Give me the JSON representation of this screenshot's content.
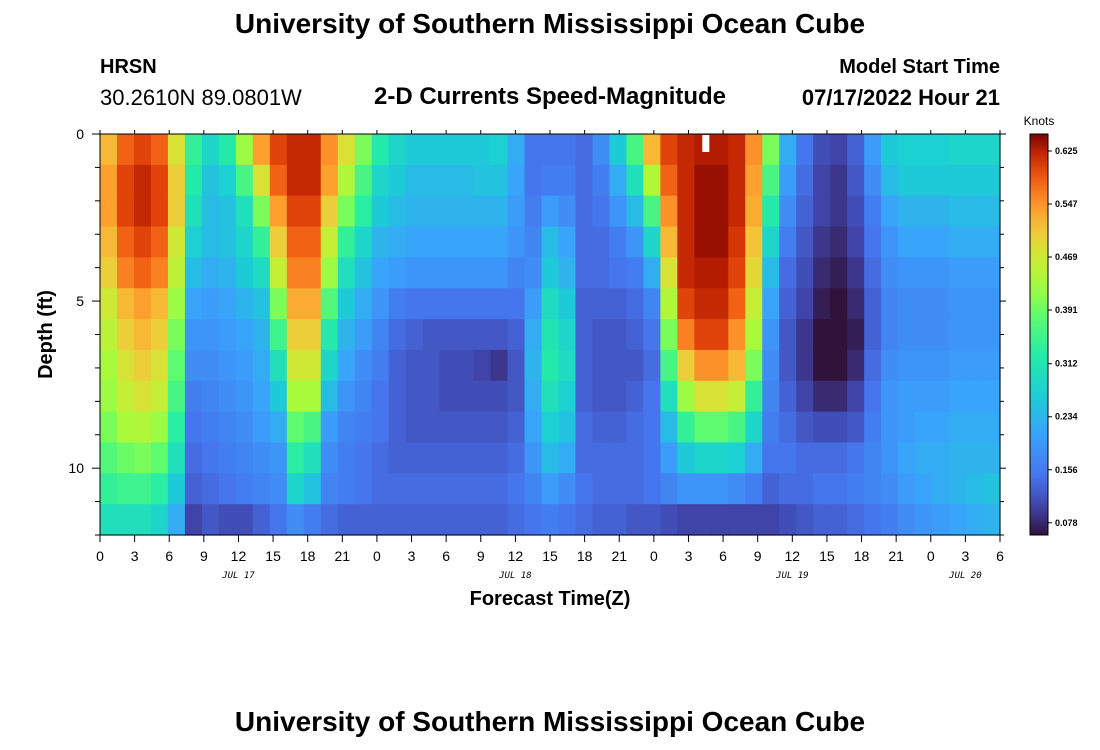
{
  "header": {
    "title": "University of Southern Mississippi Ocean Cube",
    "station": "HRSN",
    "coordinates": "30.2610N  89.0801W",
    "subtitle": "2-D Currents Speed-Magnitude",
    "model_start_label": "Model Start Time",
    "model_start_value": "07/17/2022 Hour 21"
  },
  "footer": {
    "title": "University of Southern Mississippi Ocean Cube"
  },
  "chart_data": {
    "type": "heatmap",
    "title": "2-D Currents Speed-Magnitude",
    "xlabel": "Forecast Time(Z)",
    "ylabel": "Depth (ft)",
    "colorbar_label": "Knots",
    "x_range_hours": [
      0,
      78
    ],
    "y_range_ft": [
      0,
      12
    ],
    "x_ticks": [
      "0",
      "3",
      "6",
      "9",
      "12",
      "15",
      "18",
      "21",
      "0",
      "3",
      "6",
      "9",
      "12",
      "15",
      "18",
      "21",
      "0",
      "3",
      "6",
      "9",
      "12",
      "15",
      "18",
      "21",
      "0",
      "3",
      "6"
    ],
    "x_date_labels": [
      {
        "label": "JUL 17",
        "hour": 12
      },
      {
        "label": "JUL 18",
        "hour": 36
      },
      {
        "label": "JUL 19",
        "hour": 60
      },
      {
        "label": "JUL 20",
        "hour": 75
      }
    ],
    "y_ticks": [
      0,
      5,
      10
    ],
    "colorbar_ticks": [
      0.625,
      0.547,
      0.469,
      0.391,
      0.312,
      0.234,
      0.156,
      0.078
    ],
    "color_range": [
      0.06,
      0.65
    ],
    "columns": [
      {
        "hour": 0,
        "speeds": [
          0.52,
          0.54,
          0.54,
          0.52,
          0.5,
          0.47,
          0.45,
          0.43,
          0.42,
          0.4,
          0.37,
          0.34,
          0.3
        ]
      },
      {
        "hour": 1.5,
        "speeds": [
          0.58,
          0.6,
          0.6,
          0.58,
          0.56,
          0.52,
          0.5,
          0.48,
          0.46,
          0.43,
          0.39,
          0.35,
          0.3
        ]
      },
      {
        "hour": 3,
        "speeds": [
          0.6,
          0.62,
          0.62,
          0.6,
          0.58,
          0.54,
          0.52,
          0.5,
          0.48,
          0.44,
          0.4,
          0.35,
          0.3
        ]
      },
      {
        "hour": 4.5,
        "speeds": [
          0.58,
          0.6,
          0.6,
          0.58,
          0.56,
          0.52,
          0.5,
          0.48,
          0.46,
          0.42,
          0.38,
          0.33,
          0.28
        ]
      },
      {
        "hour": 6,
        "speeds": [
          0.48,
          0.5,
          0.5,
          0.47,
          0.45,
          0.42,
          0.4,
          0.38,
          0.36,
          0.33,
          0.3,
          0.26,
          0.22
        ]
      },
      {
        "hour": 7.5,
        "speeds": [
          0.34,
          0.32,
          0.3,
          0.27,
          0.24,
          0.21,
          0.19,
          0.18,
          0.16,
          0.15,
          0.14,
          0.13,
          0.1
        ]
      },
      {
        "hour": 9,
        "speeds": [
          0.28,
          0.25,
          0.24,
          0.24,
          0.22,
          0.2,
          0.19,
          0.18,
          0.17,
          0.16,
          0.15,
          0.14,
          0.12
        ]
      },
      {
        "hour": 10.5,
        "speeds": [
          0.32,
          0.27,
          0.25,
          0.25,
          0.23,
          0.21,
          0.2,
          0.19,
          0.18,
          0.17,
          0.16,
          0.15,
          0.11
        ]
      },
      {
        "hour": 12,
        "speeds": [
          0.42,
          0.36,
          0.3,
          0.28,
          0.26,
          0.23,
          0.21,
          0.2,
          0.19,
          0.18,
          0.17,
          0.16,
          0.11
        ]
      },
      {
        "hour": 13.5,
        "speeds": [
          0.54,
          0.48,
          0.4,
          0.34,
          0.29,
          0.25,
          0.23,
          0.22,
          0.21,
          0.2,
          0.18,
          0.17,
          0.13
        ]
      },
      {
        "hour": 15,
        "speeds": [
          0.6,
          0.58,
          0.54,
          0.5,
          0.46,
          0.4,
          0.35,
          0.3,
          0.26,
          0.22,
          0.19,
          0.18,
          0.15
        ]
      },
      {
        "hour": 16.5,
        "speeds": [
          0.62,
          0.62,
          0.6,
          0.58,
          0.56,
          0.53,
          0.5,
          0.47,
          0.43,
          0.38,
          0.33,
          0.28,
          0.18
        ]
      },
      {
        "hour": 18,
        "speeds": [
          0.62,
          0.62,
          0.6,
          0.58,
          0.56,
          0.53,
          0.5,
          0.47,
          0.43,
          0.36,
          0.3,
          0.25,
          0.16
        ]
      },
      {
        "hour": 19.5,
        "speeds": [
          0.55,
          0.54,
          0.5,
          0.46,
          0.42,
          0.37,
          0.32,
          0.28,
          0.24,
          0.2,
          0.18,
          0.17,
          0.14
        ]
      },
      {
        "hour": 21,
        "speeds": [
          0.48,
          0.44,
          0.4,
          0.34,
          0.3,
          0.26,
          0.23,
          0.21,
          0.19,
          0.17,
          0.16,
          0.16,
          0.13
        ]
      },
      {
        "hour": 22.5,
        "speeds": [
          0.4,
          0.36,
          0.33,
          0.28,
          0.25,
          0.22,
          0.2,
          0.18,
          0.17,
          0.16,
          0.15,
          0.15,
          0.13
        ]
      },
      {
        "hour": 24,
        "speeds": [
          0.32,
          0.28,
          0.26,
          0.23,
          0.21,
          0.19,
          0.17,
          0.16,
          0.15,
          0.15,
          0.14,
          0.14,
          0.13
        ]
      },
      {
        "hour": 25.5,
        "speeds": [
          0.28,
          0.26,
          0.24,
          0.22,
          0.2,
          0.16,
          0.14,
          0.13,
          0.13,
          0.13,
          0.13,
          0.14,
          0.13
        ]
      },
      {
        "hour": 27,
        "speeds": [
          0.26,
          0.24,
          0.23,
          0.21,
          0.19,
          0.15,
          0.13,
          0.12,
          0.12,
          0.12,
          0.13,
          0.14,
          0.13
        ]
      },
      {
        "hour": 28.5,
        "speeds": [
          0.26,
          0.24,
          0.23,
          0.21,
          0.19,
          0.15,
          0.12,
          0.12,
          0.12,
          0.12,
          0.13,
          0.14,
          0.13
        ]
      },
      {
        "hour": 30,
        "speeds": [
          0.26,
          0.24,
          0.23,
          0.21,
          0.19,
          0.15,
          0.12,
          0.11,
          0.11,
          0.12,
          0.13,
          0.14,
          0.13
        ]
      },
      {
        "hour": 31.5,
        "speeds": [
          0.26,
          0.24,
          0.23,
          0.21,
          0.19,
          0.15,
          0.12,
          0.11,
          0.11,
          0.12,
          0.13,
          0.14,
          0.13
        ]
      },
      {
        "hour": 33,
        "speeds": [
          0.26,
          0.25,
          0.23,
          0.21,
          0.19,
          0.15,
          0.12,
          0.1,
          0.11,
          0.12,
          0.13,
          0.14,
          0.13
        ]
      },
      {
        "hour": 34.5,
        "speeds": [
          0.27,
          0.25,
          0.23,
          0.21,
          0.19,
          0.15,
          0.12,
          0.09,
          0.11,
          0.12,
          0.13,
          0.14,
          0.13
        ]
      },
      {
        "hour": 36,
        "speeds": [
          0.22,
          0.21,
          0.2,
          0.19,
          0.17,
          0.15,
          0.13,
          0.12,
          0.12,
          0.13,
          0.14,
          0.15,
          0.14
        ]
      },
      {
        "hour": 37.5,
        "speeds": [
          0.15,
          0.15,
          0.16,
          0.17,
          0.18,
          0.2,
          0.22,
          0.23,
          0.22,
          0.21,
          0.19,
          0.17,
          0.15
        ]
      },
      {
        "hour": 39,
        "speeds": [
          0.15,
          0.16,
          0.2,
          0.24,
          0.26,
          0.29,
          0.31,
          0.32,
          0.3,
          0.27,
          0.24,
          0.2,
          0.16
        ]
      },
      {
        "hour": 40.5,
        "speeds": [
          0.15,
          0.16,
          0.18,
          0.21,
          0.23,
          0.26,
          0.28,
          0.29,
          0.27,
          0.25,
          0.22,
          0.18,
          0.15
        ]
      },
      {
        "hour": 42,
        "speeds": [
          0.14,
          0.14,
          0.14,
          0.14,
          0.14,
          0.13,
          0.13,
          0.13,
          0.13,
          0.14,
          0.14,
          0.15,
          0.14
        ]
      },
      {
        "hour": 43.5,
        "speeds": [
          0.18,
          0.16,
          0.15,
          0.14,
          0.14,
          0.13,
          0.12,
          0.12,
          0.12,
          0.13,
          0.14,
          0.14,
          0.13
        ]
      },
      {
        "hour": 45,
        "speeds": [
          0.26,
          0.22,
          0.19,
          0.16,
          0.15,
          0.13,
          0.12,
          0.12,
          0.12,
          0.13,
          0.14,
          0.14,
          0.13
        ]
      },
      {
        "hour": 46.5,
        "speeds": [
          0.36,
          0.3,
          0.24,
          0.19,
          0.16,
          0.14,
          0.13,
          0.12,
          0.13,
          0.14,
          0.14,
          0.14,
          0.12
        ]
      },
      {
        "hour": 48,
        "speeds": [
          0.52,
          0.44,
          0.36,
          0.28,
          0.22,
          0.17,
          0.15,
          0.14,
          0.15,
          0.15,
          0.15,
          0.15,
          0.12
        ]
      },
      {
        "hour": 49.5,
        "speeds": [
          0.6,
          0.58,
          0.55,
          0.52,
          0.48,
          0.44,
          0.4,
          0.36,
          0.3,
          0.24,
          0.2,
          0.17,
          0.11
        ]
      },
      {
        "hour": 51,
        "speeds": [
          0.62,
          0.62,
          0.62,
          0.62,
          0.62,
          0.6,
          0.56,
          0.5,
          0.42,
          0.34,
          0.26,
          0.19,
          0.1
        ]
      },
      {
        "hour": 52.5,
        "speeds": [
          0.63,
          0.64,
          0.64,
          0.64,
          0.63,
          0.62,
          0.6,
          0.55,
          0.48,
          0.38,
          0.28,
          0.19,
          0.1
        ]
      },
      {
        "hour": 54,
        "speeds": [
          0.63,
          0.64,
          0.64,
          0.64,
          0.63,
          0.62,
          0.6,
          0.55,
          0.48,
          0.38,
          0.28,
          0.19,
          0.1
        ]
      },
      {
        "hour": 55.5,
        "speeds": [
          0.62,
          0.62,
          0.62,
          0.61,
          0.6,
          0.58,
          0.55,
          0.52,
          0.46,
          0.36,
          0.27,
          0.18,
          0.1
        ]
      },
      {
        "hour": 57,
        "speeds": [
          0.55,
          0.54,
          0.53,
          0.51,
          0.49,
          0.46,
          0.43,
          0.4,
          0.34,
          0.28,
          0.22,
          0.16,
          0.1
        ]
      },
      {
        "hour": 58.5,
        "speeds": [
          0.4,
          0.36,
          0.32,
          0.28,
          0.24,
          0.21,
          0.19,
          0.18,
          0.17,
          0.16,
          0.15,
          0.13,
          0.1
        ]
      },
      {
        "hour": 60,
        "speeds": [
          0.22,
          0.2,
          0.18,
          0.16,
          0.14,
          0.13,
          0.12,
          0.12,
          0.13,
          0.14,
          0.15,
          0.14,
          0.11
        ]
      },
      {
        "hour": 61.5,
        "speeds": [
          0.15,
          0.14,
          0.13,
          0.12,
          0.11,
          0.1,
          0.09,
          0.09,
          0.1,
          0.12,
          0.14,
          0.14,
          0.12
        ]
      },
      {
        "hour": 63,
        "speeds": [
          0.11,
          0.1,
          0.1,
          0.09,
          0.08,
          0.07,
          0.06,
          0.06,
          0.08,
          0.11,
          0.14,
          0.15,
          0.13
        ]
      },
      {
        "hour": 64.5,
        "speeds": [
          0.1,
          0.09,
          0.09,
          0.08,
          0.07,
          0.06,
          0.01,
          0.05,
          0.08,
          0.11,
          0.14,
          0.15,
          0.13
        ]
      },
      {
        "hour": 66,
        "speeds": [
          0.13,
          0.12,
          0.11,
          0.1,
          0.09,
          0.08,
          0.07,
          0.08,
          0.1,
          0.12,
          0.15,
          0.16,
          0.14
        ]
      },
      {
        "hour": 67.5,
        "speeds": [
          0.2,
          0.18,
          0.16,
          0.15,
          0.14,
          0.13,
          0.13,
          0.14,
          0.15,
          0.16,
          0.17,
          0.17,
          0.15
        ]
      },
      {
        "hour": 69,
        "speeds": [
          0.26,
          0.24,
          0.21,
          0.19,
          0.18,
          0.17,
          0.17,
          0.18,
          0.19,
          0.19,
          0.19,
          0.18,
          0.16
        ]
      },
      {
        "hour": 70.5,
        "speeds": [
          0.27,
          0.26,
          0.23,
          0.21,
          0.19,
          0.18,
          0.18,
          0.19,
          0.2,
          0.2,
          0.21,
          0.2,
          0.18
        ]
      },
      {
        "hour": 72,
        "speeds": [
          0.27,
          0.26,
          0.23,
          0.21,
          0.19,
          0.18,
          0.18,
          0.19,
          0.2,
          0.21,
          0.22,
          0.21,
          0.19
        ]
      },
      {
        "hour": 73.5,
        "speeds": [
          0.27,
          0.26,
          0.23,
          0.21,
          0.19,
          0.18,
          0.18,
          0.19,
          0.2,
          0.21,
          0.22,
          0.22,
          0.2
        ]
      },
      {
        "hour": 75,
        "speeds": [
          0.28,
          0.26,
          0.24,
          0.22,
          0.2,
          0.19,
          0.19,
          0.2,
          0.21,
          0.22,
          0.23,
          0.23,
          0.21
        ]
      },
      {
        "hour": 76.5,
        "speeds": [
          0.28,
          0.26,
          0.24,
          0.22,
          0.2,
          0.19,
          0.19,
          0.2,
          0.21,
          0.22,
          0.23,
          0.24,
          0.22
        ]
      },
      {
        "hour": 78,
        "speeds": [
          0.28,
          0.26,
          0.24,
          0.22,
          0.2,
          0.19,
          0.19,
          0.2,
          0.21,
          0.22,
          0.23,
          0.25,
          0.23
        ]
      }
    ],
    "colors": {
      "plot_border": "#000000",
      "marker": "#ffffff"
    }
  }
}
